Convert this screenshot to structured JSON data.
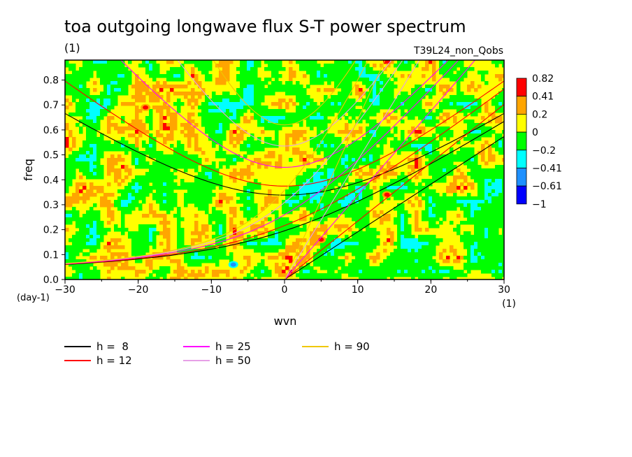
{
  "chart_data": {
    "type": "heatmap",
    "title": "toa outgoing longwave flux S-T power spectrum",
    "subtitle_left": "(1)",
    "subtitle_right": "T39L24_non_Qobs",
    "xlabel": "wvn",
    "ylabel": "freq",
    "x_unit": "(1)",
    "y_unit": "(day-1)",
    "xlim": [
      -30,
      30
    ],
    "ylim": [
      0,
      0.88
    ],
    "x_ticks": [
      -30,
      -20,
      -10,
      0,
      10,
      20,
      30
    ],
    "y_ticks": [
      0.0,
      0.1,
      0.2,
      0.3,
      0.4,
      0.5,
      0.6,
      0.7,
      0.8
    ],
    "colorbar": {
      "labels": [
        "0.82",
        "0.41",
        "0.2",
        "0",
        "-0.2",
        "-0.41",
        "-0.61",
        "-1"
      ],
      "colors": [
        "#ff0000",
        "#ffa500",
        "#ffff00",
        "#00ff00",
        "#00ffff",
        "#1e90ff",
        "#0000ff"
      ]
    },
    "field": {
      "description_levels": [
        -1,
        -0.61,
        -0.41,
        -0.2,
        0,
        0.2,
        0.41,
        0.82
      ],
      "dominant_levels": [
        "yellow (0 to 0.2)",
        "green (-0.2 to 0)"
      ],
      "hotspots": [
        {
          "wvn": -19,
          "freq": 0.69,
          "level": "0.41-0.82"
        },
        {
          "wvn": 5,
          "freq": 0.16,
          "level": "0.41-0.82"
        },
        {
          "wvn": 14,
          "freq": 0.34,
          "level": "0.41-0.82"
        },
        {
          "wvn": -7,
          "freq": 0.06,
          "level": "-0.61 to -0.41"
        }
      ]
    },
    "series": [
      {
        "name": "h =  8",
        "color": "#000000",
        "equivalent_depth": 8
      },
      {
        "name": "h = 12",
        "color": "#ff0000",
        "equivalent_depth": 12
      },
      {
        "name": "h = 25",
        "color": "#ff00ff",
        "equivalent_depth": 25
      },
      {
        "name": "h = 50",
        "color": "#e6a0e6",
        "equivalent_depth": 50
      },
      {
        "name": "h = 90",
        "color": "#f0c800",
        "equivalent_depth": 90
      }
    ]
  }
}
